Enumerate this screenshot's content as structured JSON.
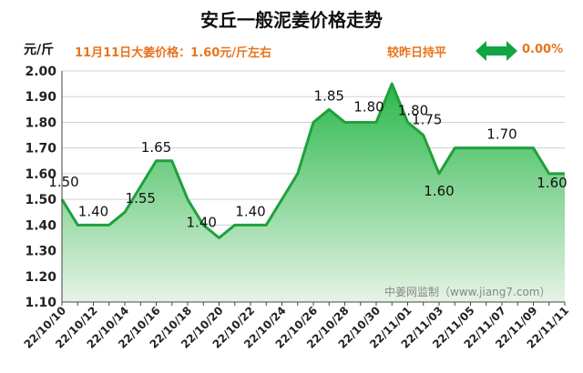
{
  "title": "安丘一般泥姜价格走势",
  "unit": "元/斤",
  "headline": "11月11日大姜价格：1.60元/斤左右",
  "compare": {
    "text": "较昨日持平",
    "change": "0.00%",
    "icon": "double-arrow-icon"
  },
  "watermark": "中姜网监制（www.jiang7.com）",
  "colors": {
    "line": "#1fa13a",
    "fill_top": "#2bb84b",
    "fill_bottom": "#e6f3e6",
    "accent": "#e8731c",
    "arrow": "#10a541"
  },
  "chart_data": {
    "type": "area",
    "title": "安丘一般泥姜价格走势",
    "ylabel": "元/斤",
    "ylim": [
      1.1,
      2.0
    ],
    "yticks": [
      "1.10",
      "1.20",
      "1.30",
      "1.40",
      "1.50",
      "1.60",
      "1.70",
      "1.80",
      "1.90",
      "2.00"
    ],
    "grid": true,
    "x": [
      "22/10/10",
      "22/10/11",
      "22/10/12",
      "22/10/13",
      "22/10/14",
      "22/10/15",
      "22/10/16",
      "22/10/17",
      "22/10/18",
      "22/10/19",
      "22/10/20",
      "22/10/21",
      "22/10/22",
      "22/10/23",
      "22/10/24",
      "22/10/25",
      "22/10/26",
      "22/10/27",
      "22/10/28",
      "22/10/29",
      "22/10/30",
      "22/10/31",
      "22/11/01",
      "22/11/02",
      "22/11/03",
      "22/11/04",
      "22/11/05",
      "22/11/06",
      "22/11/07",
      "22/11/08",
      "22/11/09",
      "22/11/10",
      "22/11/11"
    ],
    "xticks": [
      "22/10/10",
      "22/10/12",
      "22/10/14",
      "22/10/16",
      "22/10/18",
      "22/10/20",
      "22/10/22",
      "22/10/24",
      "22/10/26",
      "22/10/28",
      "22/10/30",
      "22/11/01",
      "22/11/03",
      "22/11/05",
      "22/11/07",
      "22/11/09",
      "22/11/11"
    ],
    "values": [
      1.5,
      1.4,
      1.4,
      1.4,
      1.45,
      1.55,
      1.65,
      1.65,
      1.5,
      1.4,
      1.35,
      1.4,
      1.4,
      1.4,
      1.5,
      1.6,
      1.8,
      1.85,
      1.8,
      1.8,
      1.8,
      1.95,
      1.8,
      1.75,
      1.6,
      1.7,
      1.7,
      1.7,
      1.7,
      1.7,
      1.7,
      1.6,
      1.6
    ],
    "data_labels": [
      {
        "x": "22/10/10",
        "text": "1.50"
      },
      {
        "x": "22/10/12",
        "text": "1.40"
      },
      {
        "x": "22/10/15",
        "text": "1.55"
      },
      {
        "x": "22/10/16",
        "text": "1.65"
      },
      {
        "x": "22/10/19",
        "text": "1.40"
      },
      {
        "x": "22/10/22",
        "text": "1.40"
      },
      {
        "x": "22/10/27",
        "text": "1.85"
      },
      {
        "x": "22/10/30",
        "text": "1.80"
      },
      {
        "x": "22/11/01",
        "text": "1.80"
      },
      {
        "x": "22/11/02",
        "text": "1.75"
      },
      {
        "x": "22/11/03",
        "text": "1.60"
      },
      {
        "x": "22/11/07",
        "text": "1.70"
      },
      {
        "x": "22/11/11",
        "text": "1.60"
      }
    ]
  }
}
